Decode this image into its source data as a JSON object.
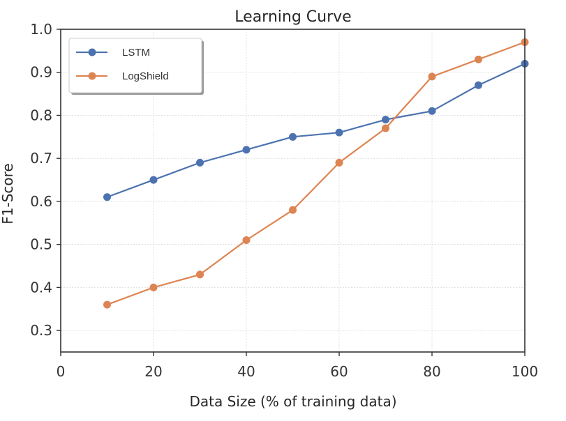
{
  "chart_data": {
    "type": "line",
    "title": "Learning Curve",
    "xlabel": "Data Size (% of training data)",
    "ylabel": "F1-Score",
    "xlim": [
      0,
      100
    ],
    "ylim": [
      0.25,
      1.0
    ],
    "xticks": [
      0,
      20,
      40,
      60,
      80,
      100
    ],
    "yticks": [
      0.3,
      0.4,
      0.5,
      0.6,
      0.7,
      0.8,
      0.9,
      1.0
    ],
    "xtick_labels": [
      "0",
      "20",
      "40",
      "60",
      "80",
      "100"
    ],
    "ytick_labels": [
      "0.3",
      "0.4",
      "0.5",
      "0.6",
      "0.7",
      "0.8",
      "0.9",
      "1.0"
    ],
    "grid": true,
    "legend_position": "top-left",
    "x": [
      10,
      20,
      30,
      40,
      50,
      60,
      70,
      80,
      90,
      100
    ],
    "series": [
      {
        "name": "LSTM",
        "color": "#4c72b0",
        "values": [
          0.61,
          0.65,
          0.69,
          0.72,
          0.75,
          0.76,
          0.79,
          0.81,
          0.87,
          0.92
        ]
      },
      {
        "name": "LogShield",
        "color": "#dd8452",
        "values": [
          0.36,
          0.4,
          0.43,
          0.51,
          0.58,
          0.69,
          0.77,
          0.89,
          0.93,
          0.97
        ]
      }
    ]
  }
}
